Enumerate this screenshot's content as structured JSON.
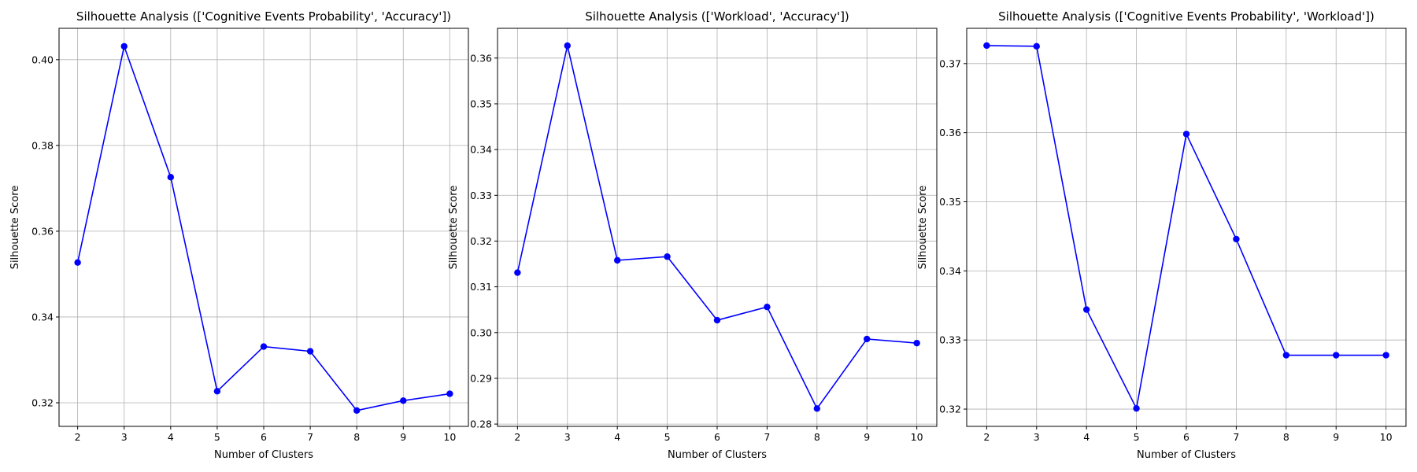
{
  "colors": {
    "series": "#0000ff",
    "grid": "#b0b0b0",
    "axes": "#000000",
    "background": "#ffffff"
  },
  "chart_data": [
    {
      "type": "line",
      "title": "Silhouette Analysis (['Cognitive Events Probability', 'Accuracy'])",
      "xlabel": "Number of Clusters",
      "ylabel": "Silhouette Score",
      "x": [
        2,
        3,
        4,
        5,
        6,
        7,
        8,
        9,
        10
      ],
      "series": [
        {
          "values": [
            0.3527,
            0.4031,
            0.3726,
            0.3227,
            0.3331,
            0.332,
            0.3182,
            0.3205,
            0.3221
          ],
          "marker": "circle"
        }
      ],
      "xticks": [
        "2",
        "3",
        "4",
        "5",
        "6",
        "7",
        "8",
        "9",
        "10"
      ],
      "yticks": [
        0.32,
        0.34,
        0.36,
        0.38,
        0.4
      ],
      "ytick_labels": [
        "0.32",
        "0.34",
        "0.36",
        "0.38",
        "0.40"
      ],
      "xlim": [
        1.6,
        10.4
      ],
      "ylim": [
        0.3145,
        0.4073
      ],
      "grid": true,
      "legend": "none"
    },
    {
      "type": "line",
      "title": "Silhouette Analysis (['Workload', 'Accuracy'])",
      "xlabel": "Number of Clusters",
      "ylabel": "Silhouette Score",
      "x": [
        2,
        3,
        4,
        5,
        6,
        7,
        8,
        9,
        10
      ],
      "series": [
        {
          "values": [
            0.3131,
            0.3627,
            0.3158,
            0.3166,
            0.3027,
            0.3056,
            0.2834,
            0.2986,
            0.2977
          ],
          "marker": "circle"
        }
      ],
      "xticks": [
        "2",
        "3",
        "4",
        "5",
        "6",
        "7",
        "8",
        "9",
        "10"
      ],
      "yticks": [
        0.28,
        0.29,
        0.3,
        0.31,
        0.32,
        0.33,
        0.34,
        0.35,
        0.36
      ],
      "ytick_labels": [
        "0.28",
        "0.29",
        "0.30",
        "0.31",
        "0.32",
        "0.33",
        "0.34",
        "0.35",
        "0.36"
      ],
      "xlim": [
        1.6,
        10.4
      ],
      "ylim": [
        0.2795,
        0.3665
      ],
      "grid": true,
      "legend": "none"
    },
    {
      "type": "line",
      "title": "Silhouette Analysis (['Cognitive Events Probability', 'Workload'])",
      "xlabel": "Number of Clusters",
      "ylabel": "Silhouette Score",
      "x": [
        2,
        3,
        4,
        5,
        6,
        7,
        8,
        9,
        10
      ],
      "series": [
        {
          "values": [
            0.3726,
            0.3725,
            0.3344,
            0.3201,
            0.3598,
            0.3446,
            0.3278,
            0.3278,
            0.3278
          ],
          "marker": "circle"
        }
      ],
      "xticks": [
        "2",
        "3",
        "4",
        "5",
        "6",
        "7",
        "8",
        "9",
        "10"
      ],
      "yticks": [
        0.32,
        0.33,
        0.34,
        0.35,
        0.36,
        0.37
      ],
      "ytick_labels": [
        "0.32",
        "0.33",
        "0.34",
        "0.35",
        "0.36",
        "0.37"
      ],
      "xlim": [
        1.6,
        10.4
      ],
      "ylim": [
        0.3175,
        0.3751
      ],
      "grid": true,
      "legend": "none"
    }
  ]
}
